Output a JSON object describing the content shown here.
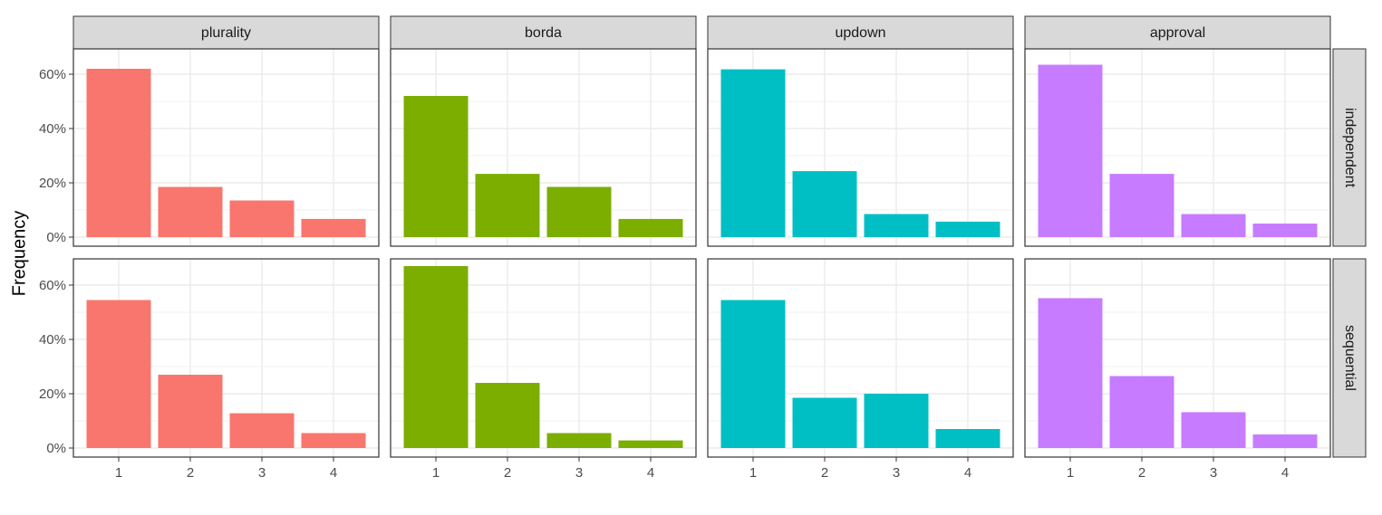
{
  "chart_data": {
    "type": "bar",
    "ylabel": "Frequency",
    "xlabel": "",
    "categories": [
      "1",
      "2",
      "3",
      "4"
    ],
    "ylim": [
      0,
      0.7
    ],
    "y_ticks": [
      0,
      0.2,
      0.4,
      0.6
    ],
    "y_tick_labels": [
      "0%",
      "20%",
      "40%",
      "60%"
    ],
    "grid": true,
    "facet_columns": [
      "plurality",
      "borda",
      "updown",
      "approval"
    ],
    "facet_rows": [
      "independent",
      "sequential"
    ],
    "colors": {
      "plurality": "#F8766D",
      "borda": "#7CAE00",
      "updown": "#00BFC4",
      "approval": "#C77CFF"
    },
    "panels": [
      {
        "row": "independent",
        "column": "plurality",
        "values": [
          0.62,
          0.185,
          0.135,
          0.067
        ]
      },
      {
        "row": "independent",
        "column": "borda",
        "values": [
          0.52,
          0.233,
          0.185,
          0.067
        ]
      },
      {
        "row": "independent",
        "column": "updown",
        "values": [
          0.618,
          0.243,
          0.085,
          0.057
        ]
      },
      {
        "row": "independent",
        "column": "approval",
        "values": [
          0.635,
          0.233,
          0.085,
          0.05
        ]
      },
      {
        "row": "sequential",
        "column": "plurality",
        "values": [
          0.545,
          0.27,
          0.128,
          0.055
        ]
      },
      {
        "row": "sequential",
        "column": "borda",
        "values": [
          0.67,
          0.24,
          0.055,
          0.028
        ]
      },
      {
        "row": "sequential",
        "column": "updown",
        "values": [
          0.545,
          0.185,
          0.2,
          0.07
        ]
      },
      {
        "row": "sequential",
        "column": "approval",
        "values": [
          0.552,
          0.265,
          0.132,
          0.05
        ]
      }
    ]
  }
}
